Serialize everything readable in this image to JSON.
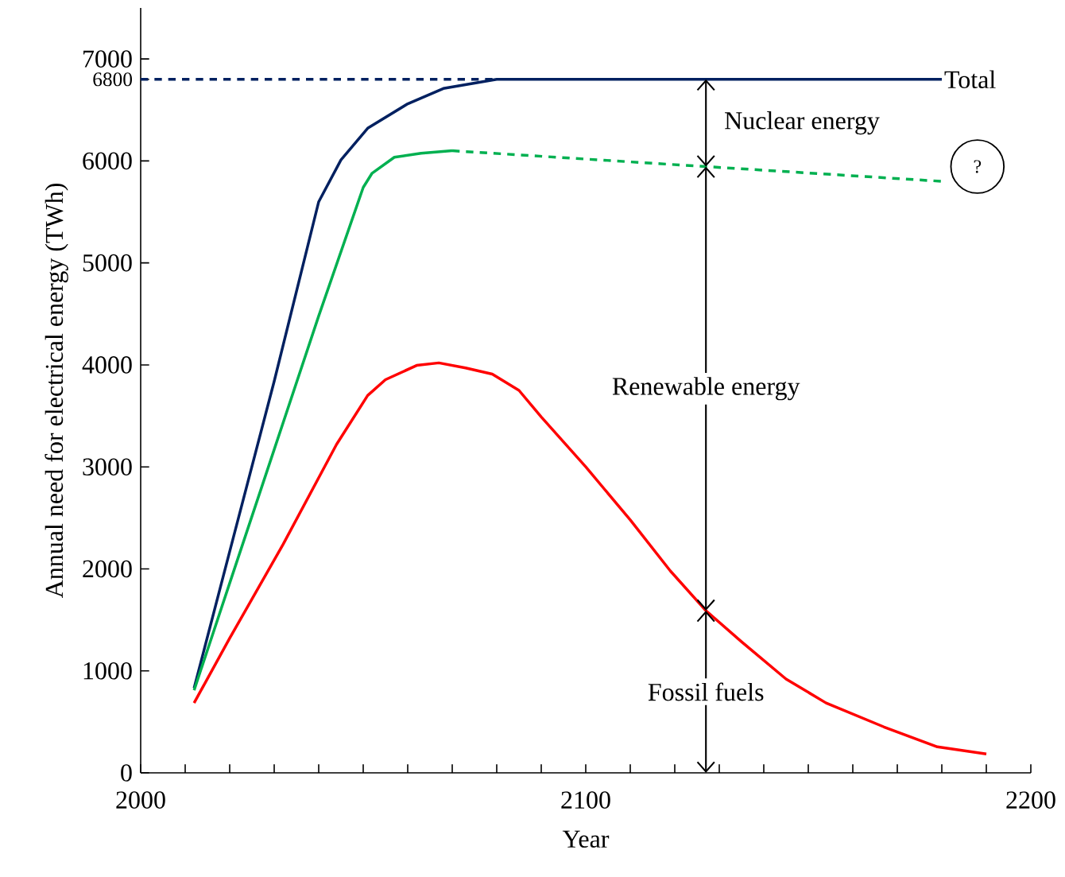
{
  "chart_data": {
    "type": "line",
    "xlabel": "Year",
    "ylabel": "Annual need for electrical energy (TWh)",
    "xlim": [
      2000,
      2200
    ],
    "ylim": [
      0,
      7500
    ],
    "xticks": [
      2000,
      {
        "value": 2010,
        "label": null
      },
      {
        "value": 2020,
        "label": null
      },
      {
        "value": 2030,
        "label": null
      },
      {
        "value": 2040,
        "label": null
      },
      {
        "value": 2050,
        "label": null
      },
      {
        "value": 2060,
        "label": null
      },
      {
        "value": 2070,
        "label": null
      },
      {
        "value": 2080,
        "label": null
      },
      {
        "value": 2090,
        "label": null
      },
      2100,
      {
        "value": 2110,
        "label": null
      },
      {
        "value": 2120,
        "label": null
      },
      {
        "value": 2130,
        "label": null
      },
      {
        "value": 2140,
        "label": null
      },
      {
        "value": 2150,
        "label": null
      },
      {
        "value": 2160,
        "label": null
      },
      {
        "value": 2170,
        "label": null
      },
      {
        "value": 2180,
        "label": null
      },
      {
        "value": 2190,
        "label": null
      },
      2200
    ],
    "yticks": [
      0,
      1000,
      2000,
      3000,
      4000,
      5000,
      6000,
      6800,
      7000
    ],
    "series": [
      {
        "name": "Total",
        "color": "#002060",
        "line_style": "solid",
        "x": [
          2012,
          2020,
          2030,
          2040,
          2045,
          2051,
          2060,
          2068,
          2080,
          2180
        ],
        "values": [
          830,
          2170,
          3840,
          5600,
          6010,
          6320,
          6560,
          6710,
          6800,
          6800
        ]
      },
      {
        "color": "#002060",
        "line_style": "dashed",
        "x": [
          2000,
          2080
        ],
        "values": [
          6800,
          6800
        ]
      },
      {
        "color": "#00b050",
        "line_style": "solid",
        "x": [
          2012,
          2020,
          2030,
          2040,
          2050,
          2052,
          2057,
          2063,
          2070
        ],
        "values": [
          810,
          1860,
          3170,
          4480,
          5740,
          5880,
          6036,
          6075,
          6100
        ]
      },
      {
        "color": "#00b050",
        "line_style": "dashed",
        "x": [
          2070,
          2180
        ],
        "values": [
          6100,
          5800
        ]
      },
      {
        "color": "#ff0000",
        "line_style": "solid",
        "x": [
          2012,
          2020,
          2032,
          2044,
          2051,
          2055,
          2062,
          2067,
          2073,
          2079,
          2085,
          2090,
          2100,
          2110,
          2119,
          2127,
          2135,
          2145,
          2154,
          2167,
          2179,
          2190
        ],
        "values": [
          685,
          1320,
          2240,
          3220,
          3700,
          3855,
          3995,
          4020,
          3970,
          3910,
          3750,
          3490,
          3000,
          2480,
          1980,
          1590,
          1285,
          920,
          685,
          450,
          255,
          185
        ]
      }
    ],
    "annotations": [
      "Nuclear energy",
      "Renewable energy",
      "Fossil fuels",
      "?"
    ]
  }
}
